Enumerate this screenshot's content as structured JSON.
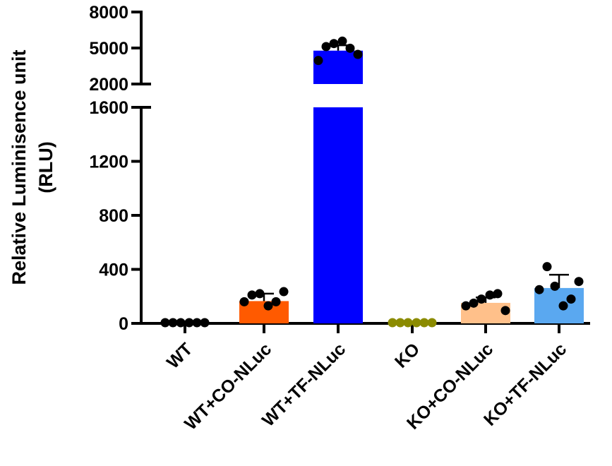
{
  "chart_data": {
    "type": "bar",
    "ylabel_lines": [
      "Relative Luminisence unit",
      "(RLU)"
    ],
    "y_axis_break": [
      1600,
      2000
    ],
    "ylim_lower": [
      0,
      1600
    ],
    "ylim_upper": [
      2000,
      8000
    ],
    "yticks_lower": [
      "0",
      "400",
      "800",
      "1200",
      "1600"
    ],
    "yticks_upper": [
      "2000",
      "5000",
      "8000"
    ],
    "categories": [
      "WT",
      "WT+CO-NLuc",
      "WT+TF-NLuc",
      "KO",
      "KO+CO-NLuc",
      "KO+TF-NLuc"
    ],
    "colors": [
      "#000000",
      "#ff5a00",
      "#0000ff",
      "#8b8b00",
      "#ffc08a",
      "#5aa8f0"
    ],
    "means": [
      5,
      165,
      4780,
      5,
      152,
      262
    ],
    "errors": [
      0,
      55,
      450,
      0,
      40,
      98
    ],
    "points": [
      [
        3,
        3,
        3,
        3,
        3,
        3
      ],
      [
        160,
        210,
        220,
        130,
        160,
        235
      ],
      [
        3960,
        5120,
        5370,
        5570,
        4980,
        4470
      ],
      [
        3,
        3,
        3,
        3,
        3,
        3
      ],
      [
        130,
        150,
        180,
        210,
        220,
        95
      ],
      [
        250,
        420,
        275,
        130,
        180,
        310
      ]
    ]
  }
}
